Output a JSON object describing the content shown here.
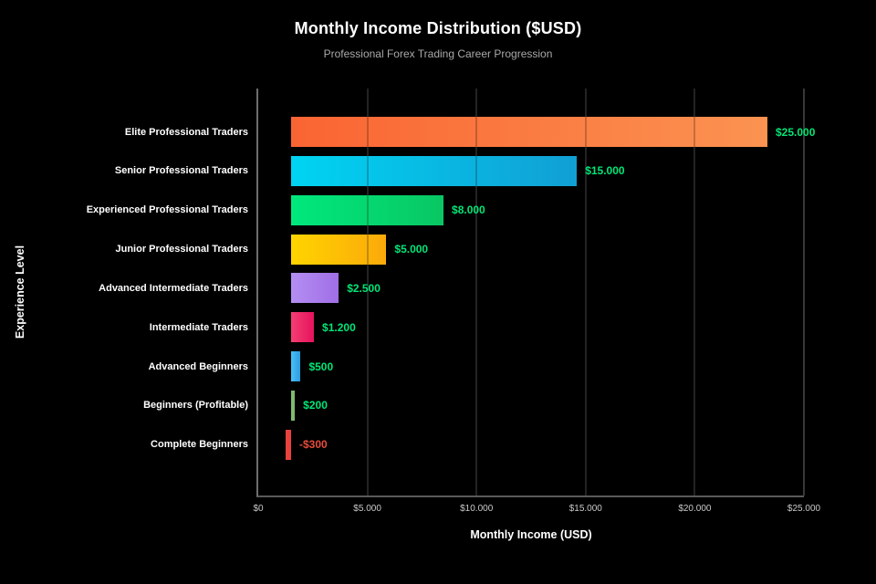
{
  "chart_data": {
    "type": "bar",
    "orientation": "horizontal",
    "title": "Monthly Income Distribution ($USD)",
    "subtitle": "Professional Forex Trading Career Progression",
    "xlabel": "Monthly Income (USD)",
    "ylabel": "Experience Level",
    "xlim": [
      0,
      25000
    ],
    "grid": true,
    "legend": false,
    "background_color": "#000000",
    "value_label_color_positive": "#00e676",
    "value_label_color_negative": "#e74c3c",
    "xticks": [
      {
        "value": 0,
        "label": "$0"
      },
      {
        "value": 5000,
        "label": "$5.000"
      },
      {
        "value": 10000,
        "label": "$10.000"
      },
      {
        "value": 15000,
        "label": "$15.000"
      },
      {
        "value": 20000,
        "label": "$20.000"
      },
      {
        "value": 25000,
        "label": "$25.000"
      }
    ],
    "bars": [
      {
        "category": "Elite Professional Traders",
        "value": 25000,
        "display": "$25.000",
        "color_start": "#fa6433",
        "color_end": "#fb9351"
      },
      {
        "category": "Senior Professional Traders",
        "value": 15000,
        "display": "$15.000",
        "color_start": "#00d4f2",
        "color_end": "#119fd4"
      },
      {
        "category": "Experienced Professional Traders",
        "value": 8000,
        "display": "$8.000",
        "color_start": "#00e87d",
        "color_end": "#09c763"
      },
      {
        "category": "Junior Professional Traders",
        "value": 5000,
        "display": "$5.000",
        "color_start": "#ffd400",
        "color_end": "#fba90a"
      },
      {
        "category": "Advanced Intermediate Traders",
        "value": 2500,
        "display": "$2.500",
        "color_start": "#b48ef2",
        "color_end": "#a06ee6"
      },
      {
        "category": "Intermediate Traders",
        "value": 1200,
        "display": "$1.200",
        "color_start": "#f43e72",
        "color_end": "#e6135e"
      },
      {
        "category": "Advanced Beginners",
        "value": 500,
        "display": "$500",
        "color_start": "#49c1f5",
        "color_end": "#2d9be0"
      },
      {
        "category": "Beginners (Profitable)",
        "value": 200,
        "display": "$200",
        "color_start": "#7fba71",
        "color_end": "#7fba71"
      },
      {
        "category": "Complete Beginners",
        "value": -300,
        "display": "-$300",
        "color_start": "#e8423e",
        "color_end": "#e8423e"
      }
    ]
  }
}
